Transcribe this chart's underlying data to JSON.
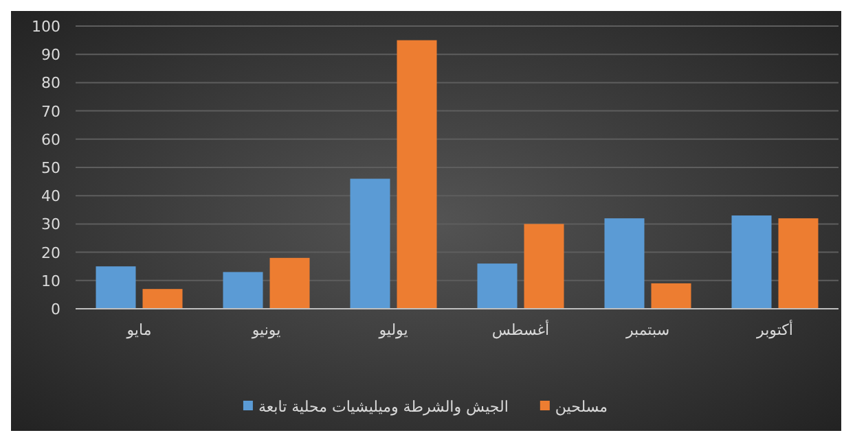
{
  "chart_data": {
    "type": "bar",
    "categories": [
      "مايو",
      "يونيو",
      "يوليو",
      "أغسطس",
      "سبتمبر",
      "أكتوبر"
    ],
    "series": [
      {
        "name": "الجيش والشرطة وميليشيات محلية تابعة",
        "color": "#5b9bd5",
        "values": [
          15,
          13,
          46,
          16,
          32,
          33
        ]
      },
      {
        "name": "مسلحين",
        "color": "#ed7d31",
        "values": [
          7,
          18,
          95,
          30,
          9,
          32
        ]
      }
    ],
    "ylim": [
      0,
      100
    ],
    "yticks": [
      0,
      10,
      20,
      30,
      40,
      50,
      60,
      70,
      80,
      90,
      100
    ],
    "grid": "y",
    "legend": "bottom"
  }
}
